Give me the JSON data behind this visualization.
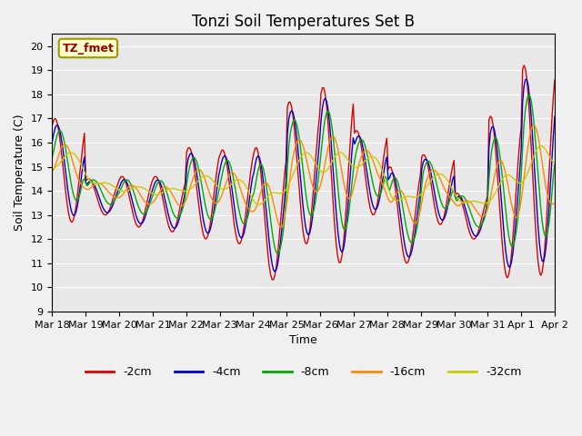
{
  "title": "Tonzi Soil Temperatures Set B",
  "xlabel": "Time",
  "ylabel": "Soil Temperature (C)",
  "ylim": [
    9.0,
    20.5
  ],
  "yticks": [
    9.0,
    10.0,
    11.0,
    12.0,
    13.0,
    14.0,
    15.0,
    16.0,
    17.0,
    18.0,
    19.0,
    20.0
  ],
  "annotation_text": "TZ_fmet",
  "annotation_bbox_facecolor": "#ffffcc",
  "annotation_bbox_edgecolor": "#999900",
  "annotation_text_color": "#990000",
  "line_colors": [
    "#dd0000",
    "#0000cc",
    "#00aa00",
    "#ff8800",
    "#cccc00"
  ],
  "line_labels": [
    "-2cm",
    "-4cm",
    "-8cm",
    "-16cm",
    "-32cm"
  ],
  "xtick_labels": [
    "Mar 18",
    "Mar 19",
    "Mar 20",
    "Mar 21",
    "Mar 22",
    "Mar 23",
    "Mar 24",
    "Mar 25",
    "Mar 26",
    "Mar 27",
    "Mar 28",
    "Mar 29",
    "Mar 30",
    "Mar 31",
    "Apr 1",
    "Apr 2"
  ],
  "title_fontsize": 12,
  "tick_fontsize": 8,
  "figsize": [
    6.4,
    4.8
  ],
  "dpi": 100
}
